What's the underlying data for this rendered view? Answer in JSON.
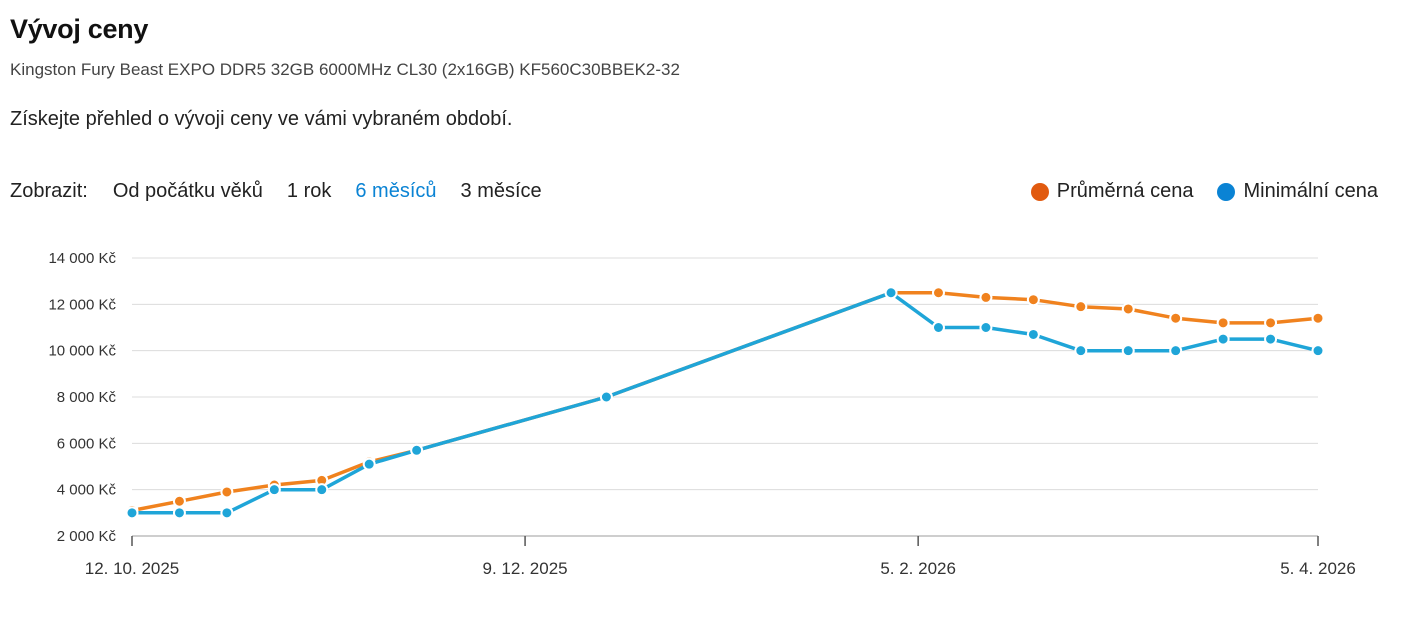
{
  "header": {
    "title": "Vývoj ceny",
    "subtitle": "Kingston Fury Beast EXPO DDR5 32GB 6000MHz CL30 (2x16GB) KF560C30BBEK2-32",
    "description": "Získejte přehled o vývoji ceny ve vámi vybraném období."
  },
  "filters": {
    "label": "Zobrazit:",
    "options": [
      "Od počátku věků",
      "1 rok",
      "6 měsíců",
      "3 měsíce"
    ],
    "active": "6 měsíců"
  },
  "colors": {
    "avg": "#f0821e",
    "min": "#1fa5d8",
    "active_link": "#0a83d4"
  },
  "legend": [
    {
      "name": "Průměrná cena",
      "color": "#e15a0f"
    },
    {
      "name": "Minimální cena",
      "color": "#0a83d4"
    }
  ],
  "chart_data": {
    "type": "line",
    "ylim": [
      2000,
      14000
    ],
    "yticks": [
      2000,
      4000,
      6000,
      8000,
      10000,
      12000,
      14000
    ],
    "ytick_labels": [
      "2 000 Kč",
      "4 000 Kč",
      "6 000 Kč",
      "8 000 Kč",
      "10 000 Kč",
      "12 000 Kč",
      "14 000 Kč"
    ],
    "xlim": [
      "2025-10-12",
      "2026-04-05"
    ],
    "xticks": [
      "2025-10-12",
      "2025-12-09",
      "2026-02-05",
      "2026-04-05"
    ],
    "xtick_labels": [
      "12. 10. 2025",
      "9. 12. 2025",
      "5. 2. 2026",
      "5. 4. 2026"
    ],
    "grid": true,
    "legend_position": "top-right",
    "series": [
      {
        "name": "Průměrná cena",
        "color": "#f0821e",
        "x": [
          "2025-10-12",
          "2025-10-19",
          "2025-10-26",
          "2025-11-02",
          "2025-11-09",
          "2025-11-16",
          "2025-11-23",
          "2025-12-21",
          "2026-02-01",
          "2026-02-08",
          "2026-02-15",
          "2026-02-22",
          "2026-03-01",
          "2026-03-08",
          "2026-03-15",
          "2026-03-22",
          "2026-03-29",
          "2026-04-05"
        ],
        "values": [
          3100,
          3500,
          3900,
          4200,
          4400,
          5200,
          5700,
          8000,
          12500,
          12500,
          12300,
          12200,
          11900,
          11800,
          11400,
          11200,
          11200,
          11400
        ]
      },
      {
        "name": "Minimální cena",
        "color": "#1fa5d8",
        "x": [
          "2025-10-12",
          "2025-10-19",
          "2025-10-26",
          "2025-11-02",
          "2025-11-09",
          "2025-11-16",
          "2025-11-23",
          "2025-12-21",
          "2026-02-01",
          "2026-02-08",
          "2026-02-15",
          "2026-02-22",
          "2026-03-01",
          "2026-03-08",
          "2026-03-15",
          "2026-03-22",
          "2026-03-29",
          "2026-04-05"
        ],
        "values": [
          3000,
          3000,
          3000,
          4000,
          4000,
          5100,
          5700,
          8000,
          12500,
          11000,
          11000,
          10700,
          10000,
          10000,
          10000,
          10500,
          10500,
          10000
        ]
      }
    ]
  }
}
